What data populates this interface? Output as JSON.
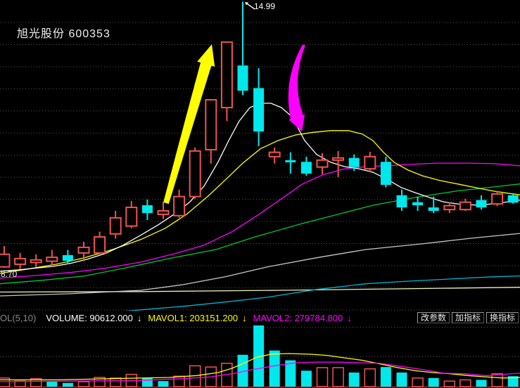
{
  "header": {
    "title": "旭光股份 600353"
  },
  "axis_labels": {
    "high": "14.99",
    "low": "8.70"
  },
  "indicator_bar": {
    "name": "OL(5,10)",
    "volume_text": "VOLUME: 90612.000",
    "volume_arrow": "↓",
    "mavol1_text": "MAVOL1: 203151.200",
    "mavol1_arrow": "↓",
    "mavol2_text": "MAVOL2: 279784.800",
    "mavol2_arrow": "↓",
    "buttons": [
      "改参数",
      "加指标",
      "换指标"
    ]
  },
  "colors": {
    "background": "#000000",
    "up": "#ee5450",
    "down": "#00e8ec",
    "grid": "#54565c",
    "baseline": "#a03028",
    "white_ma": "#ffffff",
    "yellow_ma": "#ffff00",
    "magenta_ma": "#ff00ff",
    "green_ma": "#00c832",
    "gray_ma": "#c8c8c8",
    "pale_ma": "#f0f0b4",
    "cyan_ma": "#00b4d2",
    "annotation_up": "#ffff00",
    "annotation_down": "#ff00ff"
  },
  "chart_data": {
    "type": "candlestick_with_volume",
    "title": "旭光股份 600353",
    "ylim": [
      7.87,
      15.03
    ],
    "high_marker": 14.99,
    "low_axis_label": 8.7,
    "candle_fields": [
      "open",
      "close",
      "high",
      "low",
      "dir"
    ],
    "candles": [
      [
        8.88,
        9.17,
        9.36,
        8.86,
        "u"
      ],
      [
        8.94,
        9.07,
        9.2,
        8.83,
        "u"
      ],
      [
        8.98,
        9.04,
        9.17,
        8.88,
        "u"
      ],
      [
        9.01,
        9.1,
        9.27,
        8.91,
        "u"
      ],
      [
        9.15,
        9.02,
        9.27,
        8.94,
        "d"
      ],
      [
        9.2,
        9.33,
        9.46,
        9.01,
        "u"
      ],
      [
        9.2,
        9.57,
        9.69,
        9.15,
        "u"
      ],
      [
        9.64,
        10.01,
        10.17,
        9.53,
        "u"
      ],
      [
        9.82,
        10.25,
        10.4,
        9.77,
        "u"
      ],
      [
        10.3,
        10.12,
        10.43,
        9.96,
        "d"
      ],
      [
        10.09,
        10.17,
        10.38,
        9.98,
        "u"
      ],
      [
        10.06,
        10.5,
        10.66,
        10.01,
        "u"
      ],
      [
        10.5,
        11.55,
        11.63,
        10.45,
        "u"
      ],
      [
        11.58,
        12.73,
        12.73,
        11.26,
        "u"
      ],
      [
        12.55,
        14.06,
        14.06,
        12.24,
        "u"
      ],
      [
        13.52,
        12.94,
        14.99,
        12.84,
        "d"
      ],
      [
        13.0,
        12.0,
        13.46,
        11.66,
        "d"
      ],
      [
        11.42,
        11.52,
        11.63,
        11.26,
        "u"
      ],
      [
        11.34,
        11.29,
        11.52,
        11.03,
        "d"
      ],
      [
        11.3,
        11.03,
        11.42,
        10.98,
        "d"
      ],
      [
        11.18,
        11.34,
        11.5,
        11.01,
        "u"
      ],
      [
        11.34,
        11.39,
        11.55,
        10.95,
        "u"
      ],
      [
        11.39,
        11.18,
        11.47,
        11.09,
        "d"
      ],
      [
        11.14,
        11.42,
        11.53,
        11.06,
        "u"
      ],
      [
        11.3,
        10.77,
        11.42,
        10.71,
        "d"
      ],
      [
        10.53,
        10.25,
        10.66,
        10.17,
        "d"
      ],
      [
        10.37,
        10.3,
        10.5,
        10.17,
        "d"
      ],
      [
        10.25,
        10.17,
        10.5,
        10.12,
        "d"
      ],
      [
        10.2,
        10.29,
        10.37,
        10.12,
        "u"
      ],
      [
        10.2,
        10.37,
        10.45,
        10.17,
        "u"
      ],
      [
        10.42,
        10.25,
        10.53,
        10.2,
        "d"
      ],
      [
        10.33,
        10.56,
        10.63,
        10.28,
        "u"
      ],
      [
        10.53,
        10.36,
        10.58,
        10.33,
        "d"
      ]
    ],
    "ma_lines": [
      {
        "name": "pale",
        "color_key": "pale_ma",
        "points": [
          [
            0,
            8.3
          ],
          [
            200,
            8.31
          ],
          [
            400,
            8.34
          ],
          [
            600,
            8.38
          ],
          [
            739,
            8.41
          ]
        ]
      },
      {
        "name": "cyan",
        "color_key": "cyan_ma",
        "points": [
          [
            140,
            7.81
          ],
          [
            200,
            7.89
          ],
          [
            260,
            7.97
          ],
          [
            320,
            8.07
          ],
          [
            380,
            8.18
          ],
          [
            450,
            8.36
          ],
          [
            520,
            8.49
          ],
          [
            580,
            8.55
          ],
          [
            640,
            8.6
          ],
          [
            700,
            8.65
          ],
          [
            739,
            8.67
          ]
        ]
      },
      {
        "name": "gray",
        "color_key": "gray_ma",
        "points": [
          [
            0,
            8.21
          ],
          [
            100,
            8.26
          ],
          [
            200,
            8.34
          ],
          [
            260,
            8.47
          ],
          [
            320,
            8.65
          ],
          [
            380,
            8.88
          ],
          [
            450,
            9.09
          ],
          [
            520,
            9.28
          ],
          [
            600,
            9.41
          ],
          [
            670,
            9.54
          ],
          [
            739,
            9.65
          ]
        ]
      },
      {
        "name": "green",
        "color_key": "green_ma",
        "points": [
          [
            0,
            8.49
          ],
          [
            60,
            8.57
          ],
          [
            120,
            8.67
          ],
          [
            180,
            8.86
          ],
          [
            240,
            9.07
          ],
          [
            307,
            9.28
          ],
          [
            360,
            9.56
          ],
          [
            430,
            9.88
          ],
          [
            480,
            10.09
          ],
          [
            530,
            10.3
          ],
          [
            590,
            10.48
          ],
          [
            650,
            10.63
          ],
          [
            700,
            10.72
          ],
          [
            739,
            10.79
          ]
        ]
      },
      {
        "name": "magenta",
        "color_key": "magenta_ma",
        "points": [
          [
            0,
            8.62
          ],
          [
            50,
            8.68
          ],
          [
            100,
            8.75
          ],
          [
            150,
            8.85
          ],
          [
            200,
            8.99
          ],
          [
            250,
            9.19
          ],
          [
            290,
            9.38
          ],
          [
            330,
            9.69
          ],
          [
            370,
            10.11
          ],
          [
            400,
            10.45
          ],
          [
            430,
            10.79
          ],
          [
            460,
            11.01
          ],
          [
            490,
            11.14
          ],
          [
            520,
            11.19
          ],
          [
            550,
            11.21
          ],
          [
            580,
            11.24
          ],
          [
            620,
            11.27
          ],
          [
            660,
            11.27
          ],
          [
            700,
            11.26
          ],
          [
            739,
            11.21
          ]
        ]
      },
      {
        "name": "yellow",
        "color_key": "yellow_ma",
        "points": [
          [
            0,
            8.73
          ],
          [
            40,
            8.83
          ],
          [
            80,
            8.94
          ],
          [
            120,
            9.09
          ],
          [
            160,
            9.28
          ],
          [
            200,
            9.51
          ],
          [
            235,
            9.77
          ],
          [
            265,
            10.09
          ],
          [
            295,
            10.5
          ],
          [
            320,
            10.88
          ],
          [
            345,
            11.27
          ],
          [
            370,
            11.6
          ],
          [
            395,
            11.79
          ],
          [
            420,
            11.92
          ],
          [
            445,
            11.98
          ],
          [
            470,
            12.02
          ],
          [
            495,
            12.02
          ],
          [
            515,
            11.94
          ],
          [
            530,
            11.79
          ],
          [
            545,
            11.52
          ],
          [
            560,
            11.29
          ],
          [
            580,
            11.11
          ],
          [
            600,
            10.98
          ],
          [
            625,
            10.87
          ],
          [
            650,
            10.79
          ],
          [
            675,
            10.71
          ],
          [
            700,
            10.63
          ],
          [
            720,
            10.58
          ],
          [
            739,
            10.54
          ]
        ]
      },
      {
        "name": "white",
        "color_key": "white_ma",
        "points": [
          [
            0,
            8.78
          ],
          [
            25,
            8.81
          ],
          [
            50,
            8.85
          ],
          [
            75,
            8.89
          ],
          [
            100,
            8.96
          ],
          [
            125,
            9.06
          ],
          [
            150,
            9.19
          ],
          [
            175,
            9.38
          ],
          [
            200,
            9.61
          ],
          [
            225,
            9.85
          ],
          [
            250,
            10.12
          ],
          [
            270,
            10.38
          ],
          [
            290,
            10.74
          ],
          [
            310,
            11.3
          ],
          [
            325,
            11.79
          ],
          [
            340,
            12.24
          ],
          [
            355,
            12.55
          ],
          [
            370,
            12.65
          ],
          [
            385,
            12.65
          ],
          [
            400,
            12.55
          ],
          [
            415,
            12.34
          ],
          [
            433,
            11.79
          ],
          [
            450,
            11.47
          ],
          [
            470,
            11.29
          ],
          [
            490,
            11.19
          ],
          [
            510,
            11.14
          ],
          [
            530,
            11.06
          ],
          [
            550,
            10.9
          ],
          [
            570,
            10.71
          ],
          [
            590,
            10.59
          ],
          [
            610,
            10.48
          ],
          [
            630,
            10.38
          ],
          [
            650,
            10.33
          ],
          [
            680,
            10.3
          ],
          [
            710,
            10.35
          ],
          [
            739,
            10.42
          ]
        ]
      }
    ],
    "volume_readout": 90612.0,
    "mavol1_readout": 203151.2,
    "mavol2_readout": 279784.8,
    "volumes": [
      {
        "f": 0.14,
        "d": "u"
      },
      {
        "f": 0.09,
        "d": "u"
      },
      {
        "f": 0.13,
        "d": "u"
      },
      {
        "f": 0.08,
        "d": "d"
      },
      {
        "f": 0.06,
        "d": "d"
      },
      {
        "f": 0.08,
        "d": "u"
      },
      {
        "f": 0.15,
        "d": "u"
      },
      {
        "f": 0.14,
        "d": "u"
      },
      {
        "f": 0.2,
        "d": "u"
      },
      {
        "f": 0.14,
        "d": "d"
      },
      {
        "f": 0.09,
        "d": "d"
      },
      {
        "f": 0.17,
        "d": "u"
      },
      {
        "f": 0.34,
        "d": "u"
      },
      {
        "f": 0.32,
        "d": "u"
      },
      {
        "f": 0.38,
        "d": "u"
      },
      {
        "f": 0.52,
        "d": "d"
      },
      {
        "f": 1.0,
        "d": "d"
      },
      {
        "f": 0.59,
        "d": "d"
      },
      {
        "f": 0.43,
        "d": "d"
      },
      {
        "f": 0.26,
        "d": "d"
      },
      {
        "f": 0.31,
        "d": "u"
      },
      {
        "f": 0.31,
        "d": "u"
      },
      {
        "f": 0.23,
        "d": "d"
      },
      {
        "f": 0.29,
        "d": "u"
      },
      {
        "f": 0.32,
        "d": "d"
      },
      {
        "f": 0.23,
        "d": "d"
      },
      {
        "f": 0.14,
        "d": "u"
      },
      {
        "f": 0.14,
        "d": "d"
      },
      {
        "f": 0.09,
        "d": "u"
      },
      {
        "f": 0.11,
        "d": "u"
      },
      {
        "f": 0.11,
        "d": "d"
      },
      {
        "f": 0.21,
        "d": "u"
      },
      {
        "f": 0.17,
        "d": "d"
      }
    ],
    "vol_ma_lines": [
      {
        "name": "mavol1",
        "color_key": "yellow_ma",
        "points": [
          [
            0,
            0.11
          ],
          [
            80,
            0.11
          ],
          [
            160,
            0.13
          ],
          [
            240,
            0.15
          ],
          [
            280,
            0.18
          ],
          [
            310,
            0.23
          ],
          [
            330,
            0.3
          ],
          [
            350,
            0.4
          ],
          [
            365,
            0.48
          ],
          [
            385,
            0.53
          ],
          [
            410,
            0.54
          ],
          [
            440,
            0.53
          ],
          [
            465,
            0.51
          ],
          [
            490,
            0.47
          ],
          [
            515,
            0.43
          ],
          [
            540,
            0.37
          ],
          [
            565,
            0.31
          ],
          [
            590,
            0.26
          ],
          [
            615,
            0.23
          ],
          [
            640,
            0.21
          ],
          [
            665,
            0.18
          ],
          [
            690,
            0.16
          ],
          [
            715,
            0.14
          ],
          [
            739,
            0.15
          ]
        ]
      },
      {
        "name": "mavol2",
        "color_key": "magenta_ma",
        "points": [
          [
            0,
            0.08
          ],
          [
            100,
            0.09
          ],
          [
            200,
            0.1
          ],
          [
            260,
            0.13
          ],
          [
            300,
            0.16
          ],
          [
            330,
            0.21
          ],
          [
            360,
            0.28
          ],
          [
            390,
            0.34
          ],
          [
            420,
            0.39
          ],
          [
            450,
            0.4
          ],
          [
            480,
            0.4
          ],
          [
            510,
            0.39
          ],
          [
            540,
            0.38
          ],
          [
            570,
            0.33
          ],
          [
            600,
            0.28
          ],
          [
            630,
            0.22
          ],
          [
            660,
            0.21
          ],
          [
            690,
            0.18
          ],
          [
            715,
            0.2
          ],
          [
            739,
            0.22
          ]
        ]
      }
    ],
    "arrows": [
      {
        "name": "up-trend-arrow",
        "color_key": "annotation_up",
        "tail": [
          236,
          289
        ],
        "ctrl": [
          268,
          176
        ],
        "tip": [
          301,
          63
        ],
        "w0": 4,
        "w1": 8,
        "head_len": 30,
        "head_w": 13
      },
      {
        "name": "down-trend-arrow",
        "color_key": "annotation_down",
        "tail": [
          432,
          64
        ],
        "ctrl": [
          403,
          125
        ],
        "tip": [
          429,
          187
        ],
        "w0": 2,
        "w1": 9,
        "head_len": 26,
        "head_w": 12
      },
      {
        "name": "high-price-leader",
        "color_key": "white_ma",
        "tail": [
          362,
          13
        ],
        "ctrl": [
          355,
          8
        ],
        "tip": [
          348,
          3
        ],
        "w0": 0.7,
        "w1": 0.7,
        "head_len": 5,
        "head_w": 2.5
      }
    ]
  }
}
